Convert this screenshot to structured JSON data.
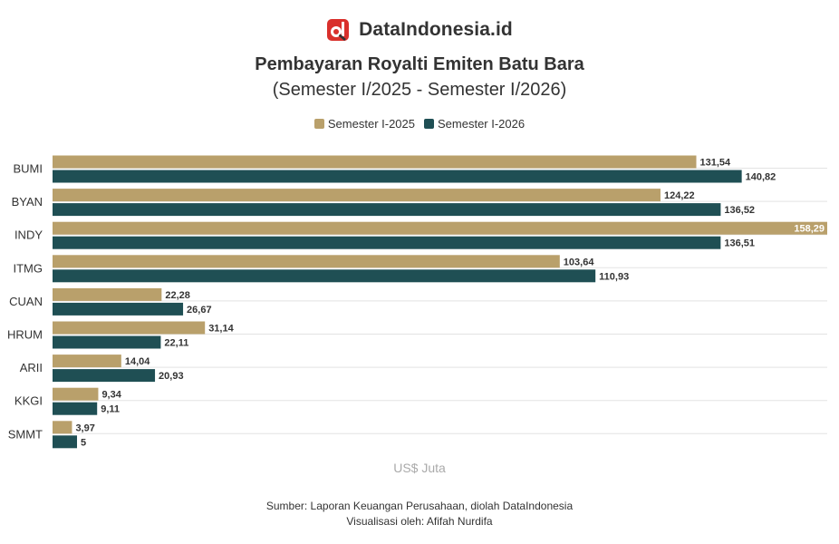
{
  "brand": {
    "name": "DataIndonesia.id"
  },
  "colors": {
    "series1": "#b9a06b",
    "series2": "#1f4f54",
    "logo_red": "#d9302c",
    "grid": "#e3e3e3"
  },
  "chart_data": {
    "type": "bar",
    "orientation": "horizontal",
    "title": "Pembayaran Royalti Emiten Batu Bara",
    "subtitle": "(Semester I/2025 - Semester I/2026)",
    "xlabel": "US$ Juta",
    "ylabel": "",
    "xlim": [
      0,
      158.29
    ],
    "legend_position": "top-center",
    "categories": [
      "BUMI",
      "BYAN",
      "INDY",
      "ITMG",
      "CUAN",
      "HRUM",
      "ARII",
      "KKGI",
      "SMMT"
    ],
    "series": [
      {
        "name": "Semester I-2025",
        "values": [
          131.54,
          124.22,
          158.29,
          103.64,
          22.28,
          31.14,
          14.04,
          9.34,
          3.97
        ],
        "labels": [
          "131,54",
          "124,22",
          "158,29",
          "103,64",
          "22,28",
          "31,14",
          "14,04",
          "9,34",
          "3,97"
        ]
      },
      {
        "name": "Semester I-2026",
        "values": [
          140.82,
          136.52,
          136.51,
          110.93,
          26.67,
          22.11,
          20.93,
          9.11,
          5
        ],
        "labels": [
          "140,82",
          "136,52",
          "136,51",
          "110,93",
          "26,67",
          "22,11",
          "20,93",
          "9,11",
          "5"
        ]
      }
    ]
  },
  "footer": {
    "source": "Sumber: Laporan Keuangan Perusahaan, diolah DataIndonesia",
    "credit": "Visualisasi oleh: Afifah Nurdifa"
  }
}
